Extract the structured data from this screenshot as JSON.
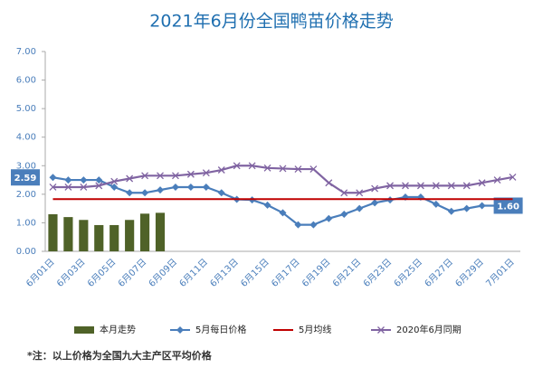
{
  "chart_data": {
    "type": "combo",
    "title": "2021年6月份全国鸭苗价格走势",
    "note": "*注：以上价格为全国九大主产区平均价格",
    "categories": [
      "6月01日",
      null,
      "6月03日",
      null,
      "6月05日",
      null,
      "6月07日",
      null,
      "6月09日",
      null,
      "6月11日",
      null,
      "6月13日",
      null,
      "6月15日",
      null,
      "6月17日",
      null,
      "6月19日",
      null,
      "6月21日",
      null,
      "6月23日",
      null,
      "6月25日",
      null,
      "6月27日",
      null,
      "6月29日",
      null,
      "7月01日"
    ],
    "ylim": [
      0,
      7
    ],
    "yticks": [
      {
        "value": 0,
        "label": "0.00"
      },
      {
        "value": 1,
        "label": "1.00"
      },
      {
        "value": 2,
        "label": "2.00"
      },
      {
        "value": 3,
        "label": "3.00"
      },
      {
        "value": 4,
        "label": "4.00"
      },
      {
        "value": 5,
        "label": "5.00"
      },
      {
        "value": 6,
        "label": "6.00"
      },
      {
        "value": 7,
        "label": "7.00"
      }
    ],
    "grid": false,
    "legend": "bottom",
    "series": [
      {
        "name": "本月走势",
        "kind": "bar",
        "color": "#4f6228",
        "values": [
          1.3,
          1.2,
          1.1,
          0.92,
          0.92,
          1.1,
          1.32,
          1.35,
          null,
          null,
          null,
          null,
          null,
          null,
          null,
          null,
          null,
          null,
          null,
          null,
          null,
          null,
          null,
          null,
          null,
          null,
          null,
          null,
          null,
          null,
          null
        ]
      },
      {
        "name": "5月每日价格",
        "kind": "line",
        "marker": "diamond",
        "color": "#4a7ebb",
        "values": [
          2.59,
          2.5,
          2.5,
          2.5,
          2.25,
          2.05,
          2.05,
          2.15,
          2.25,
          2.25,
          2.25,
          2.05,
          1.82,
          1.8,
          1.62,
          1.35,
          0.93,
          0.93,
          1.15,
          1.3,
          1.5,
          1.7,
          1.8,
          1.9,
          1.9,
          1.65,
          1.4,
          1.5,
          1.6,
          1.6,
          null
        ],
        "value_labels": [
          "2.59",
          null,
          null,
          null,
          null,
          null,
          null,
          null,
          null,
          null,
          null,
          null,
          null,
          null,
          null,
          null,
          null,
          null,
          null,
          null,
          null,
          null,
          null,
          null,
          null,
          null,
          null,
          null,
          null,
          "1.60",
          null
        ]
      },
      {
        "name": "5月均线",
        "kind": "line",
        "marker": "none",
        "color": "#c00000",
        "values": [
          1.83,
          1.83,
          1.83,
          1.83,
          1.83,
          1.83,
          1.83,
          1.83,
          1.83,
          1.83,
          1.83,
          1.83,
          1.83,
          1.83,
          1.83,
          1.83,
          1.83,
          1.83,
          1.83,
          1.83,
          1.83,
          1.83,
          1.83,
          1.83,
          1.83,
          1.83,
          1.83,
          1.83,
          1.83,
          1.83,
          1.83
        ]
      },
      {
        "name": "2020年6月同期",
        "kind": "line",
        "marker": "x",
        "color": "#8064a2",
        "values": [
          2.25,
          2.25,
          2.25,
          2.3,
          2.45,
          2.55,
          2.65,
          2.65,
          2.65,
          2.7,
          2.75,
          2.85,
          3.0,
          3.0,
          2.92,
          2.9,
          2.88,
          2.88,
          2.4,
          2.05,
          2.05,
          2.2,
          2.3,
          2.3,
          2.3,
          2.3,
          2.3,
          2.3,
          2.4,
          2.5,
          2.6
        ]
      }
    ]
  }
}
